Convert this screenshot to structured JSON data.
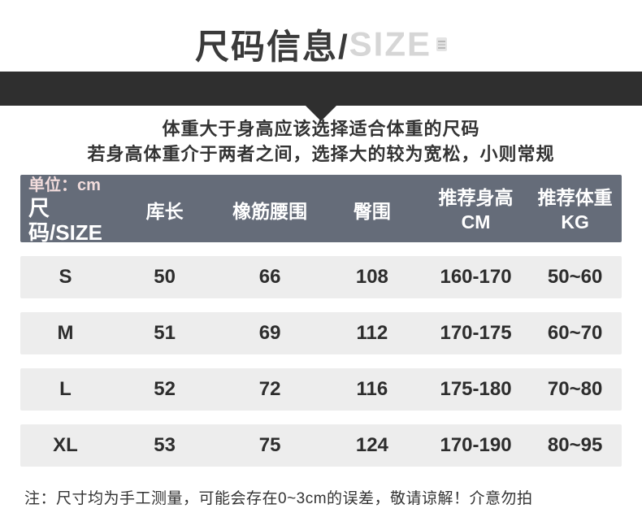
{
  "title": {
    "cn": "尺码信息/",
    "en": "SIZE",
    "badge_icon": "text-lines-badge-icon"
  },
  "intro": {
    "line1": "体重大于身高应该选择适合体重的尺码",
    "line2": "若身高体重介于两者之间，选择大的较为宽松，小则常规"
  },
  "table": {
    "unit_label": "单位：cm",
    "size_header": "尺码/SIZE",
    "col_length": "库长",
    "col_waist": "橡筋腰围",
    "col_hip": "臀围",
    "col_height_line1": "推荐身高",
    "col_height_line2": "CM",
    "col_weight_line1": "推荐体重",
    "col_weight_line2": "KG",
    "rows": [
      {
        "size": "S",
        "length": "50",
        "waist": "66",
        "hip": "108",
        "height": "160-170",
        "weight": "50~60"
      },
      {
        "size": "M",
        "length": "51",
        "waist": "69",
        "hip": "112",
        "height": "170-175",
        "weight": "60~70"
      },
      {
        "size": "L",
        "length": "52",
        "waist": "72",
        "hip": "116",
        "height": "175-180",
        "weight": "70~80"
      },
      {
        "size": "XL",
        "length": "53",
        "waist": "75",
        "hip": "124",
        "height": "170-190",
        "weight": "80~95"
      }
    ]
  },
  "note": "注：尺寸均为手工测量，可能会存在0~3cm的误差，敬请谅解！介意勿拍",
  "colors": {
    "divider_bar": "#2f2f2f",
    "table_header_bg": "#656c79",
    "row_bg": "#ededed",
    "unit_label_text": "#f2dcdc",
    "title_en_text": "#d6d6d6"
  }
}
